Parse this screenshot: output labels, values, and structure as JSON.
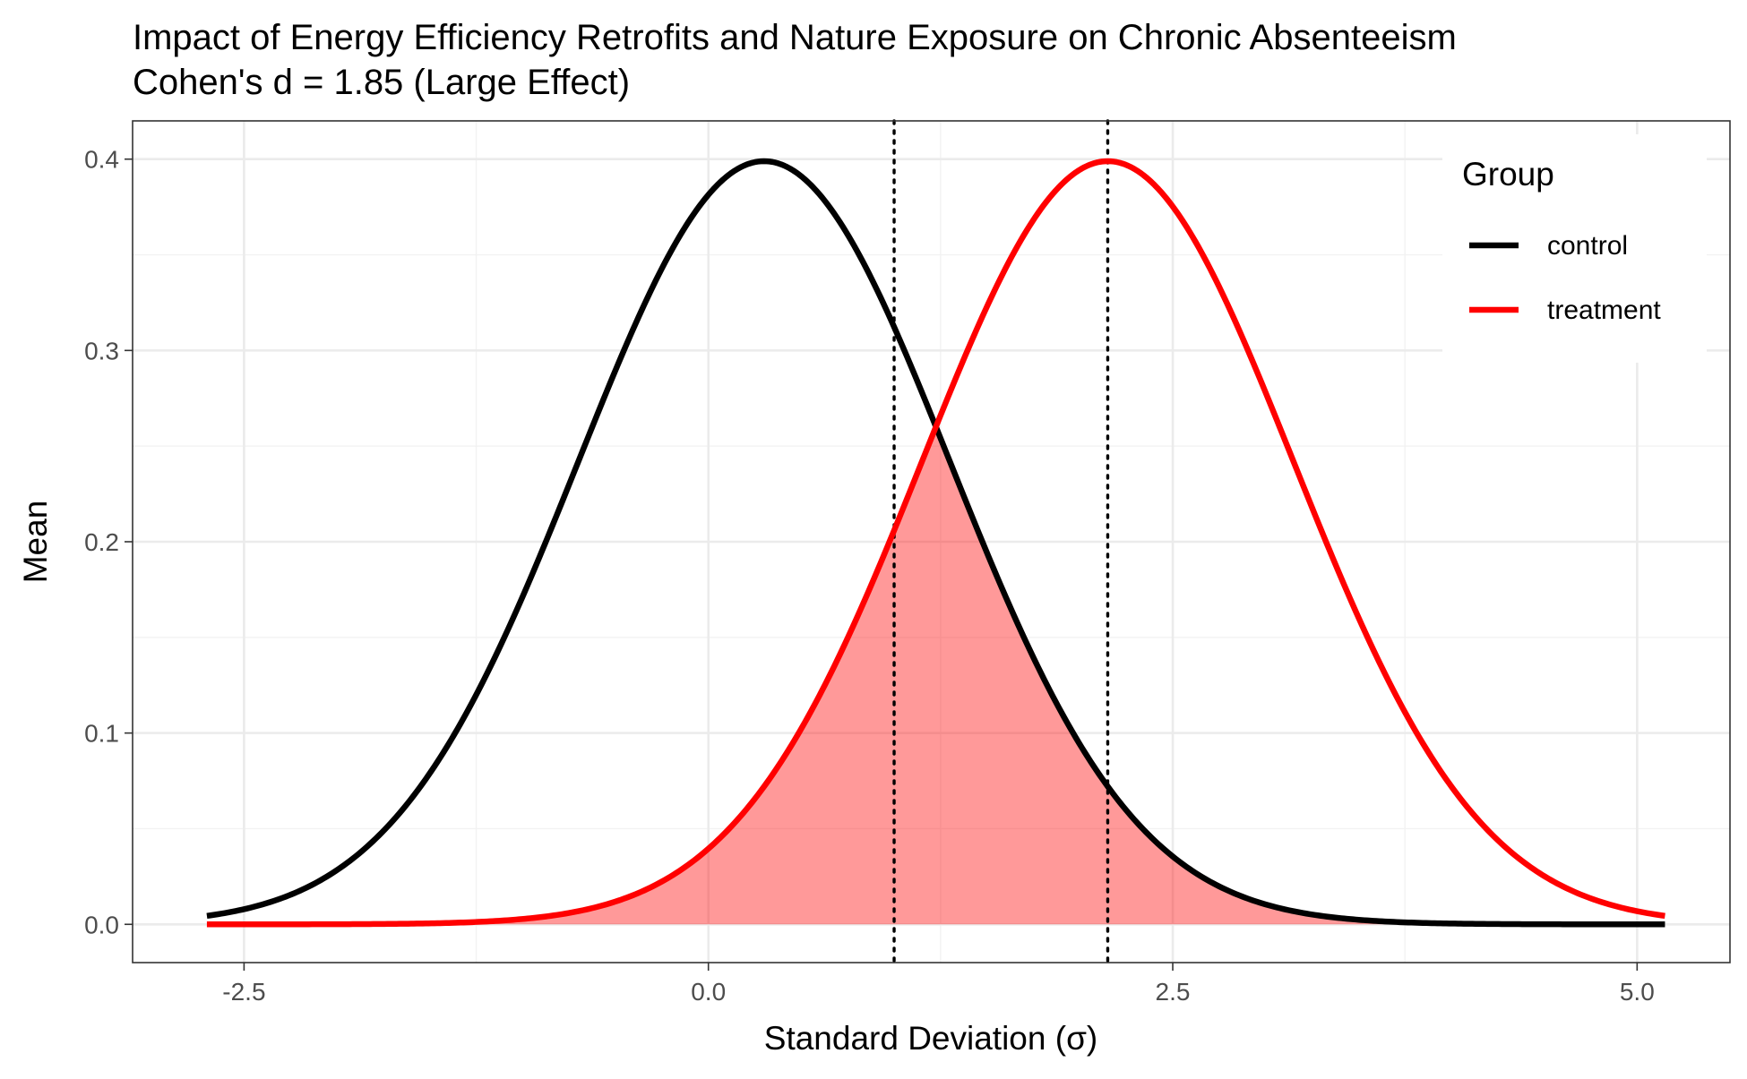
{
  "chart_data": {
    "type": "line",
    "title": "Impact of Energy Efficiency Retrofits and Nature Exposure on Chronic Absenteeism",
    "subtitle": "Cohen's d = 1.85 (Large Effect)",
    "xlabel": "Standard Deviation (σ)",
    "ylabel": "Mean",
    "xlim": [
      -3.1,
      5.5
    ],
    "ylim": [
      -0.02,
      0.42
    ],
    "x_ticks": [
      -2.5,
      0.0,
      2.5,
      5.0
    ],
    "x_tick_labels": [
      "-2.5",
      "0.0",
      "2.5",
      "5.0"
    ],
    "y_ticks": [
      0.0,
      0.1,
      0.2,
      0.3,
      0.4
    ],
    "y_tick_labels": [
      "0.0",
      "0.1",
      "0.2",
      "0.3",
      "0.4"
    ],
    "grid": true,
    "x_range": [
      -2.7,
      5.15
    ],
    "series": [
      {
        "name": "control",
        "distribution": "normal",
        "mean": 0.3,
        "sd": 1.0,
        "color": "#000000"
      },
      {
        "name": "treatment",
        "distribution": "normal",
        "mean": 2.15,
        "sd": 1.0,
        "color": "#ff0000"
      }
    ],
    "overlap_fill": {
      "color": "#ff0000",
      "opacity": 0.4
    },
    "vlines": [
      {
        "x": 1.0,
        "style": "dotted",
        "color": "#000000"
      },
      {
        "x": 2.15,
        "style": "dotted",
        "color": "#000000"
      }
    ],
    "legend": {
      "title": "Group",
      "position": "top-right",
      "entries": [
        "control",
        "treatment"
      ]
    }
  }
}
